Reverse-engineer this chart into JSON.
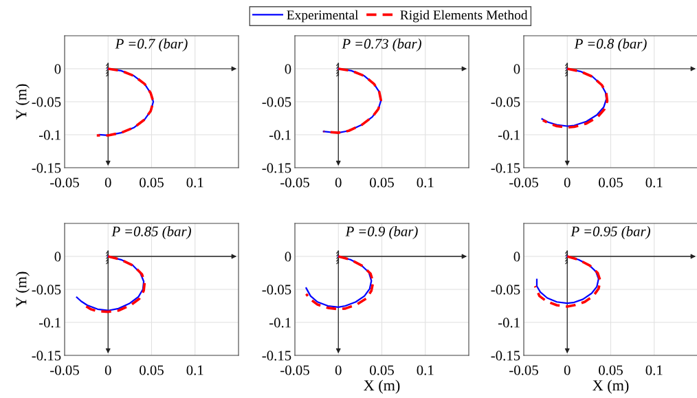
{
  "chart_data": [
    {
      "type": "line",
      "title": "P =0.7 (bar)",
      "ylabel": "Y (m)",
      "xlim": [
        -0.05,
        0.15
      ],
      "ylim": [
        -0.15,
        0.05
      ],
      "xticks": [
        -0.05,
        0,
        0.05,
        0.1
      ],
      "yticks": [
        -0.15,
        -0.1,
        -0.05,
        0
      ],
      "grid": true,
      "legend": "top",
      "series": [
        {
          "name": "Experimental",
          "color": "#0000ff",
          "line_style": "solid",
          "x": [
            0,
            0.015,
            0.03,
            0.042,
            0.049,
            0.052,
            0.049,
            0.042,
            0.03,
            0.015,
            0,
            -0.01
          ],
          "values": [
            0,
            -0.003,
            -0.011,
            -0.023,
            -0.037,
            -0.05,
            -0.064,
            -0.077,
            -0.089,
            -0.097,
            -0.101,
            -0.1
          ]
        },
        {
          "name": "Rigid Elements Method",
          "color": "#ff0000",
          "line_style": "dashed",
          "x": [
            0,
            0.015,
            0.03,
            0.042,
            0.049,
            0.052,
            0.049,
            0.042,
            0.03,
            0.015,
            0,
            -0.013
          ],
          "values": [
            0,
            -0.003,
            -0.011,
            -0.023,
            -0.037,
            -0.05,
            -0.064,
            -0.077,
            -0.089,
            -0.097,
            -0.101,
            -0.101
          ]
        }
      ]
    },
    {
      "type": "line",
      "title": "P =0.73 (bar)",
      "xlim": [
        -0.05,
        0.15
      ],
      "ylim": [
        -0.15,
        0.05
      ],
      "xticks": [
        -0.05,
        0,
        0.05,
        0.1
      ],
      "yticks": [
        -0.15,
        -0.1,
        -0.05,
        0
      ],
      "grid": true,
      "series": [
        {
          "color": "#0000ff",
          "line_style": "solid",
          "x": [
            0,
            0.015,
            0.03,
            0.041,
            0.047,
            0.049,
            0.046,
            0.039,
            0.027,
            0.012,
            0,
            -0.01,
            -0.017
          ],
          "values": [
            0,
            -0.003,
            -0.011,
            -0.023,
            -0.035,
            -0.048,
            -0.061,
            -0.073,
            -0.085,
            -0.094,
            -0.097,
            -0.096,
            -0.095
          ]
        },
        {
          "color": "#ff0000",
          "line_style": "dashed",
          "x": [
            0,
            0.015,
            0.03,
            0.041,
            0.047,
            0.049,
            0.046,
            0.039,
            0.027,
            0.012,
            0,
            -0.01,
            -0.017
          ],
          "values": [
            0,
            -0.003,
            -0.011,
            -0.023,
            -0.035,
            -0.048,
            -0.061,
            -0.073,
            -0.085,
            -0.094,
            -0.097,
            -0.096,
            -0.095
          ]
        }
      ]
    },
    {
      "type": "line",
      "title": "P =0.8 (bar)",
      "xlim": [
        -0.05,
        0.15
      ],
      "ylim": [
        -0.15,
        0.05
      ],
      "xticks": [
        -0.05,
        0,
        0.05,
        0.1
      ],
      "yticks": [
        -0.15,
        -0.1,
        -0.05,
        0
      ],
      "grid": true,
      "series": [
        {
          "color": "#0000ff",
          "line_style": "solid",
          "x": [
            0,
            0.015,
            0.029,
            0.039,
            0.044,
            0.045,
            0.042,
            0.034,
            0.022,
            0.008,
            0,
            -0.012,
            -0.022,
            -0.029
          ],
          "values": [
            0,
            -0.004,
            -0.012,
            -0.024,
            -0.036,
            -0.046,
            -0.058,
            -0.07,
            -0.08,
            -0.086,
            -0.087,
            -0.085,
            -0.081,
            -0.076
          ]
        },
        {
          "color": "#ff0000",
          "line_style": "dashed",
          "x": [
            0,
            0.015,
            0.029,
            0.04,
            0.045,
            0.046,
            0.043,
            0.035,
            0.022,
            0.008,
            0,
            -0.012,
            -0.022,
            -0.028
          ],
          "values": [
            0,
            -0.004,
            -0.012,
            -0.025,
            -0.038,
            -0.049,
            -0.061,
            -0.073,
            -0.083,
            -0.088,
            -0.089,
            -0.087,
            -0.082,
            -0.078
          ]
        }
      ]
    },
    {
      "type": "line",
      "title": "P =0.85 (bar)",
      "ylabel": "Y (m)",
      "xlim": [
        -0.05,
        0.15
      ],
      "ylim": [
        -0.15,
        0.05
      ],
      "xticks": [
        -0.05,
        0,
        0.05,
        0.1
      ],
      "yticks": [
        -0.15,
        -0.1,
        -0.05,
        0
      ],
      "grid": true,
      "series": [
        {
          "color": "#0000ff",
          "line_style": "solid",
          "x": [
            0,
            0.015,
            0.028,
            0.037,
            0.041,
            0.04,
            0.035,
            0.025,
            0.012,
            0,
            -0.012,
            -0.024,
            -0.031,
            -0.036
          ],
          "values": [
            0,
            -0.005,
            -0.013,
            -0.025,
            -0.038,
            -0.05,
            -0.061,
            -0.071,
            -0.079,
            -0.082,
            -0.08,
            -0.074,
            -0.068,
            -0.062
          ]
        },
        {
          "color": "#ff0000",
          "line_style": "dashed",
          "x": [
            0,
            0.015,
            0.029,
            0.039,
            0.042,
            0.041,
            0.036,
            0.026,
            0.012,
            0,
            -0.012,
            -0.02,
            -0.026
          ],
          "values": [
            0,
            -0.005,
            -0.014,
            -0.027,
            -0.04,
            -0.052,
            -0.064,
            -0.074,
            -0.082,
            -0.084,
            -0.083,
            -0.08,
            -0.075
          ]
        }
      ]
    },
    {
      "type": "line",
      "title": "P =0.9 (bar)",
      "xlabel": "X (m)",
      "xlim": [
        -0.05,
        0.15
      ],
      "ylim": [
        -0.15,
        0.05
      ],
      "xticks": [
        -0.05,
        0,
        0.05,
        0.1
      ],
      "yticks": [
        -0.15,
        -0.1,
        -0.05,
        0
      ],
      "grid": true,
      "series": [
        {
          "color": "#0000ff",
          "line_style": "solid",
          "x": [
            0,
            0.014,
            0.026,
            0.035,
            0.038,
            0.036,
            0.03,
            0.02,
            0.008,
            0,
            -0.012,
            -0.024,
            -0.032,
            -0.037
          ],
          "values": [
            0,
            -0.005,
            -0.013,
            -0.024,
            -0.037,
            -0.049,
            -0.06,
            -0.069,
            -0.075,
            -0.077,
            -0.075,
            -0.069,
            -0.06,
            -0.048
          ]
        },
        {
          "color": "#ff0000",
          "line_style": "dashed",
          "x": [
            0,
            0.014,
            0.027,
            0.037,
            0.04,
            0.038,
            0.032,
            0.021,
            0.008,
            0,
            -0.012,
            -0.024,
            -0.032,
            -0.037
          ],
          "values": [
            0,
            -0.005,
            -0.014,
            -0.026,
            -0.039,
            -0.052,
            -0.064,
            -0.073,
            -0.079,
            -0.08,
            -0.078,
            -0.073,
            -0.065,
            -0.057
          ]
        }
      ]
    },
    {
      "type": "line",
      "title": "P =0.95 (bar)",
      "xlabel": "X (m)",
      "xlim": [
        -0.05,
        0.15
      ],
      "ylim": [
        -0.15,
        0.05
      ],
      "xticks": [
        -0.05,
        0,
        0.05,
        0.1
      ],
      "yticks": [
        -0.15,
        -0.1,
        -0.05,
        0
      ],
      "grid": true,
      "series": [
        {
          "color": "#0000ff",
          "line_style": "solid",
          "x": [
            0,
            0.013,
            0.025,
            0.033,
            0.036,
            0.034,
            0.028,
            0.018,
            0.007,
            0,
            -0.012,
            -0.023,
            -0.031,
            -0.035,
            -0.035
          ],
          "values": [
            0,
            -0.005,
            -0.013,
            -0.023,
            -0.034,
            -0.046,
            -0.056,
            -0.065,
            -0.07,
            -0.071,
            -0.069,
            -0.063,
            -0.054,
            -0.045,
            -0.035
          ]
        },
        {
          "color": "#ff0000",
          "line_style": "dashed",
          "x": [
            0,
            0.013,
            0.026,
            0.035,
            0.038,
            0.036,
            0.03,
            0.02,
            0.008,
            0,
            -0.012,
            -0.024,
            -0.032,
            -0.037
          ],
          "values": [
            0,
            -0.005,
            -0.014,
            -0.025,
            -0.037,
            -0.049,
            -0.06,
            -0.069,
            -0.074,
            -0.076,
            -0.074,
            -0.068,
            -0.06,
            -0.045
          ]
        }
      ]
    }
  ]
}
